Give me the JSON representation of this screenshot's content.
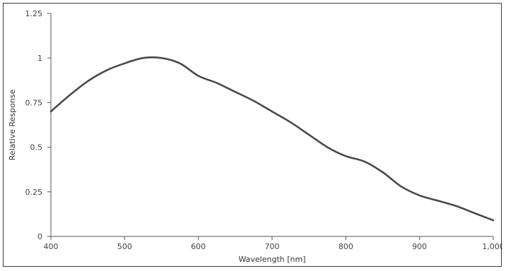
{
  "chart_data": {
    "type": "line",
    "title": "",
    "xlabel": "Wavelength [nm]",
    "ylabel": "Relative Response",
    "xlim": [
      400,
      1000
    ],
    "ylim": [
      0,
      1.25
    ],
    "x_ticks": [
      400,
      500,
      600,
      700,
      800,
      900,
      1000
    ],
    "x_tick_labels": [
      "400",
      "500",
      "600",
      "700",
      "800",
      "900",
      "1,000"
    ],
    "y_ticks": [
      0,
      0.25,
      0.5,
      0.75,
      1,
      1.25
    ],
    "y_tick_labels": [
      "0",
      "0.25",
      "0.5",
      "0.75",
      "1",
      "1.25"
    ],
    "grid": false,
    "line_color": "#4a4a4a",
    "series": [
      {
        "x": [
          400,
          425,
          450,
          475,
          500,
          525,
          550,
          575,
          600,
          625,
          650,
          675,
          700,
          725,
          750,
          775,
          800,
          825,
          850,
          875,
          900,
          925,
          950,
          975,
          1000
        ],
        "y": [
          0.7,
          0.79,
          0.87,
          0.93,
          0.97,
          1.0,
          1.0,
          0.97,
          0.9,
          0.86,
          0.81,
          0.76,
          0.7,
          0.64,
          0.57,
          0.5,
          0.45,
          0.42,
          0.36,
          0.28,
          0.23,
          0.2,
          0.17,
          0.13,
          0.09
        ]
      }
    ]
  }
}
